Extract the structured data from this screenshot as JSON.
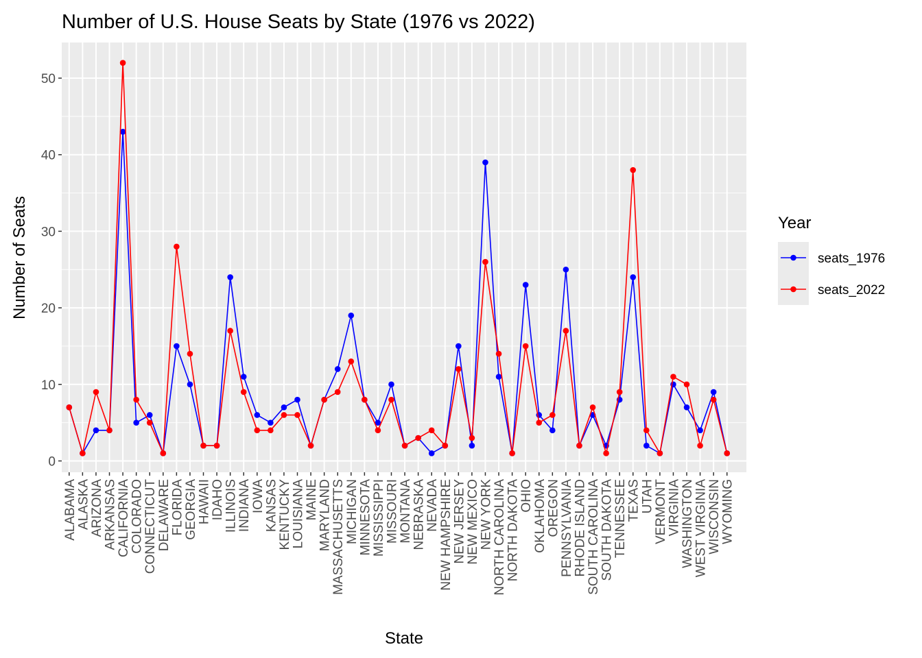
{
  "chart_data": {
    "type": "line",
    "title": "Number of U.S. House Seats by State (1976 vs 2022)",
    "xlabel": "State",
    "ylabel": "Number of Seats",
    "ylim": [
      0,
      52
    ],
    "yticks": [
      0,
      10,
      20,
      30,
      40,
      50
    ],
    "grid": true,
    "legend": {
      "title": "Year",
      "position": "right"
    },
    "categories": [
      "ALABAMA",
      "ALASKA",
      "ARIZONA",
      "ARKANSAS",
      "CALIFORNIA",
      "COLORADO",
      "CONNECTICUT",
      "DELAWARE",
      "FLORIDA",
      "GEORGIA",
      "HAWAII",
      "IDAHO",
      "ILLINOIS",
      "INDIANA",
      "IOWA",
      "KANSAS",
      "KENTUCKY",
      "LOUISIANA",
      "MAINE",
      "MARYLAND",
      "MASSACHUSETTS",
      "MICHIGAN",
      "MINNESOTA",
      "MISSISSIPPI",
      "MISSOURI",
      "MONTANA",
      "NEBRASKA",
      "NEVADA",
      "NEW HAMPSHIRE",
      "NEW JERSEY",
      "NEW MEXICO",
      "NEW YORK",
      "NORTH CAROLINA",
      "NORTH DAKOTA",
      "OHIO",
      "OKLAHOMA",
      "OREGON",
      "PENNSYLVANIA",
      "RHODE ISLAND",
      "SOUTH CAROLINA",
      "SOUTH DAKOTA",
      "TENNESSEE",
      "TEXAS",
      "UTAH",
      "VERMONT",
      "VIRGINIA",
      "WASHINGTON",
      "WEST VIRGINIA",
      "WISCONSIN",
      "WYOMING"
    ],
    "series": [
      {
        "name": "seats_1976",
        "color": "#0000ff",
        "values": [
          7,
          1,
          4,
          4,
          43,
          5,
          6,
          1,
          15,
          10,
          2,
          2,
          24,
          11,
          6,
          5,
          7,
          8,
          2,
          8,
          12,
          19,
          8,
          5,
          10,
          2,
          3,
          1,
          2,
          15,
          2,
          39,
          11,
          1,
          23,
          6,
          4,
          25,
          2,
          6,
          2,
          8,
          24,
          2,
          1,
          10,
          7,
          4,
          9,
          1
        ]
      },
      {
        "name": "seats_2022",
        "color": "#ff0000",
        "values": [
          7,
          1,
          9,
          4,
          52,
          8,
          5,
          1,
          28,
          14,
          2,
          2,
          17,
          9,
          4,
          4,
          6,
          6,
          2,
          8,
          9,
          13,
          8,
          4,
          8,
          2,
          3,
          4,
          2,
          12,
          3,
          26,
          14,
          1,
          15,
          5,
          6,
          17,
          2,
          7,
          1,
          9,
          38,
          4,
          1,
          11,
          10,
          2,
          8,
          1
        ]
      }
    ]
  }
}
